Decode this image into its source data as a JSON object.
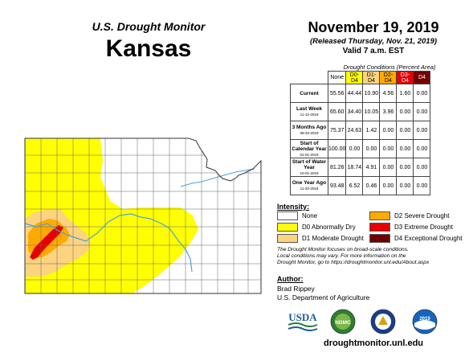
{
  "header": {
    "subtitle": "U.S. Drought Monitor",
    "state": "Kansas"
  },
  "date": {
    "main": "November 19, 2019",
    "released": "(Released Thursday, Nov. 21, 2019)",
    "valid": "Valid 7 a.m. EST"
  },
  "table": {
    "caption": "Drought Conditions (Percent Area)",
    "headers": [
      "None",
      "D0-D4",
      "D1-D4",
      "D2-D4",
      "D3-D4",
      "D4"
    ],
    "header_colors": [
      "#ffffff",
      "#ffff00",
      "#fcd37f",
      "#ffaa00",
      "#e60000",
      "#730000"
    ],
    "rows": [
      {
        "label": "Current",
        "date": "",
        "values": [
          "55.56",
          "44.44",
          "10.90",
          "4.56",
          "1.60",
          "0.00"
        ]
      },
      {
        "label": "Last Week",
        "date": "11-12-2019",
        "values": [
          "65.60",
          "34.40",
          "10.05",
          "3.96",
          "0.00",
          "0.00"
        ]
      },
      {
        "label": "3 Months Ago",
        "date": "08-20-2019",
        "values": [
          "75.37",
          "24.63",
          "1.42",
          "0.00",
          "0.00",
          "0.00"
        ]
      },
      {
        "label": "Start of Calendar Year",
        "date": "01-01-2019",
        "values": [
          "100.00",
          "0.00",
          "0.00",
          "0.00",
          "0.00",
          "0.00"
        ]
      },
      {
        "label": "Start of Water Year",
        "date": "10-01-2019",
        "values": [
          "81.26",
          "18.74",
          "4.91",
          "0.00",
          "0.00",
          "0.00"
        ]
      },
      {
        "label": "One Year Ago",
        "date": "11-20-2018",
        "values": [
          "93.48",
          "6.52",
          "0.46",
          "0.00",
          "0.00",
          "0.00"
        ]
      }
    ]
  },
  "legend": {
    "title": "Intensity:",
    "items": [
      {
        "label": "None",
        "color": "#ffffff"
      },
      {
        "label": "D0 Abnormally Dry",
        "color": "#ffff00"
      },
      {
        "label": "D1 Moderate Drought",
        "color": "#fcd37f"
      },
      {
        "label": "D2 Severe Drought",
        "color": "#ffaa00"
      },
      {
        "label": "D3 Extreme Drought",
        "color": "#e60000"
      },
      {
        "label": "D4 Exceptional Drought",
        "color": "#730000"
      }
    ]
  },
  "note": {
    "line1": "The Drought Monitor focuses on broad-scale conditions.",
    "line2": "Local conditions may vary. For more information on the",
    "line3": "Drought Monitor, go to https://droughtmonitor.unl.edu/About.aspx"
  },
  "author": {
    "heading": "Author:",
    "name": "Brad Rippey",
    "org": "U.S. Department of Agriculture"
  },
  "logos": {
    "usda": "USDA",
    "ndmc": "NDMC",
    "noaa_year": "2019"
  },
  "site": "droughtmonitor.unl.edu"
}
